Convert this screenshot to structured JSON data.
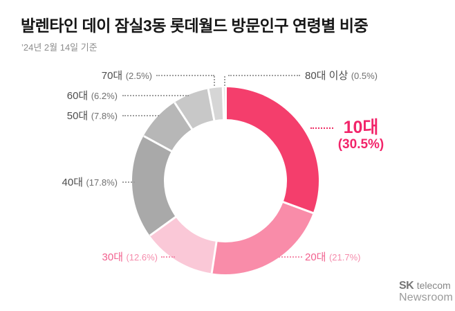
{
  "header": {
    "title": "발렌타인 데이 잠실3동 롯데월드 방문인구 연령별 비중",
    "subtitle": "’24년 2월 14일 기준"
  },
  "chart_data": {
    "type": "pie",
    "subtype": "donut",
    "title": "발렌타인 데이 잠실3동 롯데월드 방문인구 연령별 비중",
    "subtitle": "’24년 2월 14일 기준",
    "categories": [
      "10대",
      "20대",
      "30대",
      "40대",
      "50대",
      "60대",
      "70대",
      "80대 이상"
    ],
    "values": [
      30.5,
      21.7,
      12.6,
      17.8,
      7.8,
      6.2,
      2.5,
      0.5
    ],
    "unit": "%",
    "colors": [
      "#F43E6C",
      "#F98CA9",
      "#FAC8D7",
      "#A9A9A9",
      "#B7B7B7",
      "#C8C8C8",
      "#D6D6D6",
      "#E2E2E2"
    ],
    "start_angle_deg": 0,
    "direction": "clockwise",
    "donut_hole_ratio": 0.66,
    "highlight_category": "10대",
    "legend_position": "none",
    "label_format": "{category} ({value}%)"
  },
  "labels": [
    {
      "name": "10대",
      "pct": "(30.5%)"
    },
    {
      "name": "20대",
      "pct": "(21.7%)"
    },
    {
      "name": "30대",
      "pct": "(12.6%)"
    },
    {
      "name": "40대",
      "pct": "(17.8%)"
    },
    {
      "name": "50대",
      "pct": "(7.8%)"
    },
    {
      "name": "60대",
      "pct": "(6.2%)"
    },
    {
      "name": "70대",
      "pct": "(2.5%)"
    },
    {
      "name": "80대 이상",
      "pct": "(0.5%)"
    }
  ],
  "footer": {
    "brand_primary": "SK",
    "brand_secondary": "telecom",
    "brand_line2": "Newsroom"
  }
}
